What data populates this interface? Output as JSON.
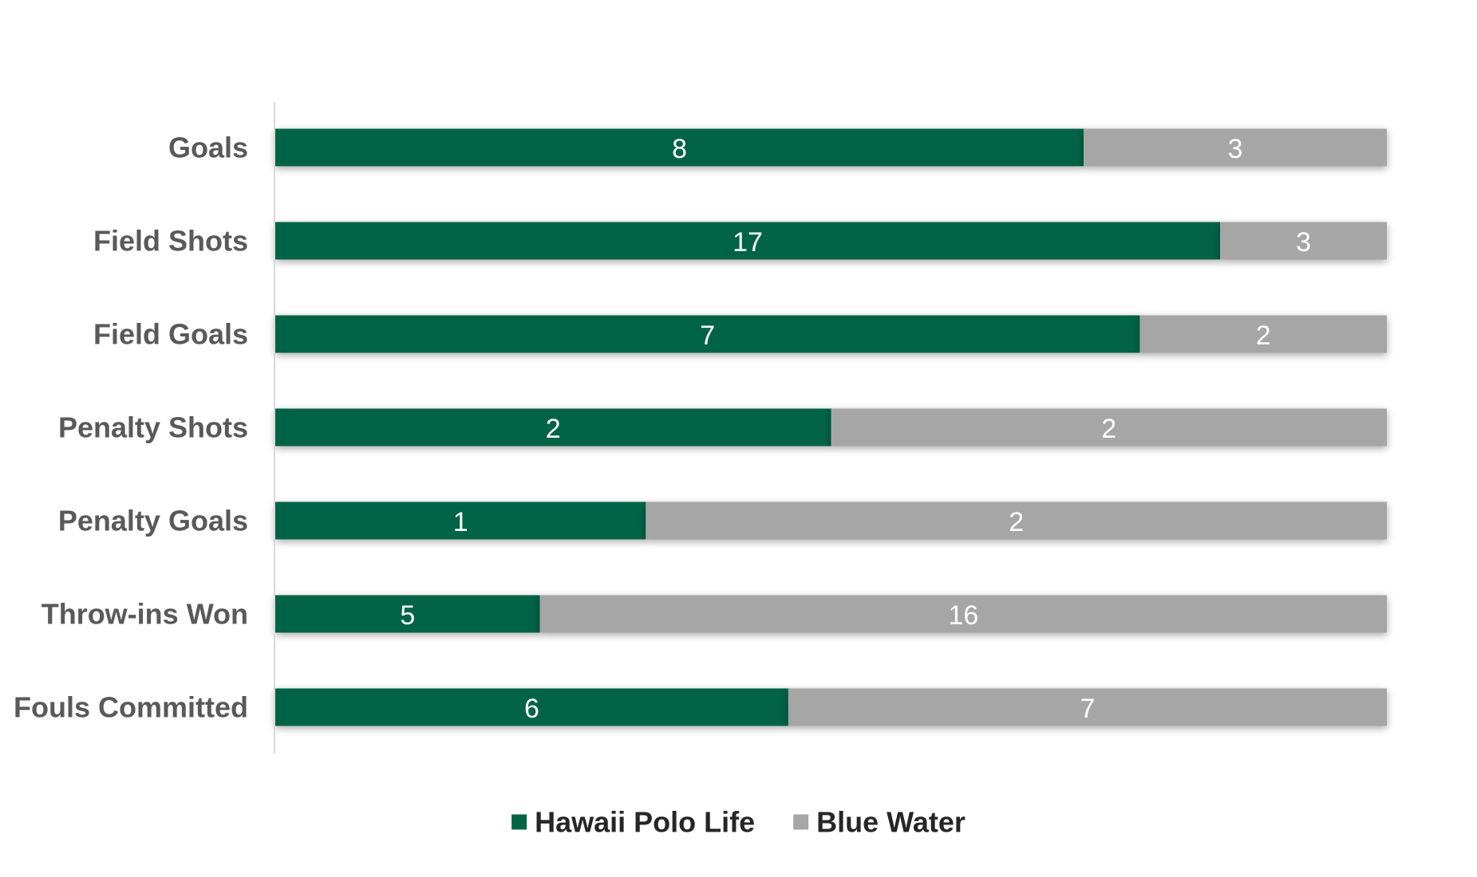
{
  "chart_data": {
    "type": "bar",
    "orientation": "horizontal",
    "stacking": "percent",
    "categories": [
      "Goals",
      "Field Shots",
      "Field Goals",
      "Penalty Shots",
      "Penalty Goals",
      "Throw-ins Won",
      "Fouls Committed"
    ],
    "series": [
      {
        "name": "Hawaii Polo Life",
        "values": [
          8,
          17,
          7,
          2,
          1,
          5,
          6
        ],
        "color": "#056444"
      },
      {
        "name": "Blue Water",
        "values": [
          3,
          3,
          2,
          2,
          2,
          16,
          7
        ],
        "color": "#a6a6a6"
      }
    ],
    "title": "",
    "xlabel": "",
    "ylabel": "",
    "grid": false,
    "legend_position": "bottom",
    "data_labels": true
  }
}
